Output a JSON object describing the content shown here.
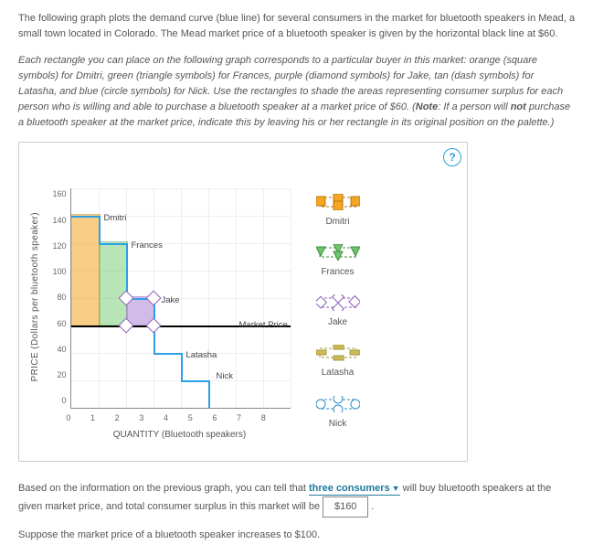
{
  "intro1": "The following graph plots the demand curve (blue line) for several consumers in the market for bluetooth speakers in Mead, a small town located in Colorado. The Mead market price of a bluetooth speaker is given by the horizontal black line at $60.",
  "intro2_pre": "Each rectangle you can place on the following graph corresponds to a particular buyer in this market: orange (square symbols) for Dmitri, green (triangle symbols) for Frances, purple (diamond symbols) for Jake, tan (dash symbols) for Latasha, and blue (circle symbols) for Nick. Use the rectangles to shade the areas representing consumer surplus for each person who is willing and able to purchase a bluetooth speaker at a market price of $60. (",
  "intro2_note": "Note",
  "intro2_mid": ": If a person will ",
  "intro2_not": "not",
  "intro2_post": " purchase a bluetooth speaker at the market price, indicate this by leaving his or her rectangle in its original position on the palette.)",
  "chart": {
    "ylabel": "PRICE (Dollars per bluetooth speaker)",
    "xlabel": "QUANTITY (Bluetooth speakers)",
    "ymax": 160,
    "ystep": 20,
    "xmax": 8,
    "xstep": 1,
    "market_price": 60,
    "market_price_label": "Market Price",
    "steps": [
      {
        "name": "Dmitri",
        "wtp": 140,
        "color": "#f5a623"
      },
      {
        "name": "Frances",
        "wtp": 120,
        "color": "#7ed07e"
      },
      {
        "name": "Jake",
        "wtp": 80,
        "color": "#b085d6"
      },
      {
        "name": "Latasha",
        "wtp": 40,
        "color": "#d4c66a"
      },
      {
        "name": "Nick",
        "wtp": 20,
        "color": "#5bb8e8"
      }
    ],
    "labels": {
      "dmitri": "Dmitri",
      "frances": "Frances",
      "jake": "Jake",
      "latasha": "Latasha",
      "nick": "Nick"
    }
  },
  "legend": [
    {
      "key": "dmitri",
      "label": "Dmitri"
    },
    {
      "key": "frances",
      "label": "Frances"
    },
    {
      "key": "jake",
      "label": "Jake"
    },
    {
      "key": "latasha",
      "label": "Latasha"
    },
    {
      "key": "nick",
      "label": "Nick"
    }
  ],
  "q1_pre": "Based on the information on the previous graph, you can tell that ",
  "q1_dd": "three consumers",
  "q1_mid": " will buy bluetooth speakers at the given market price, and total consumer surplus in this market will be ",
  "q1_val": "$160",
  "q1_post": ".",
  "q2": "Suppose the market price of a bluetooth speaker increases to $100."
}
